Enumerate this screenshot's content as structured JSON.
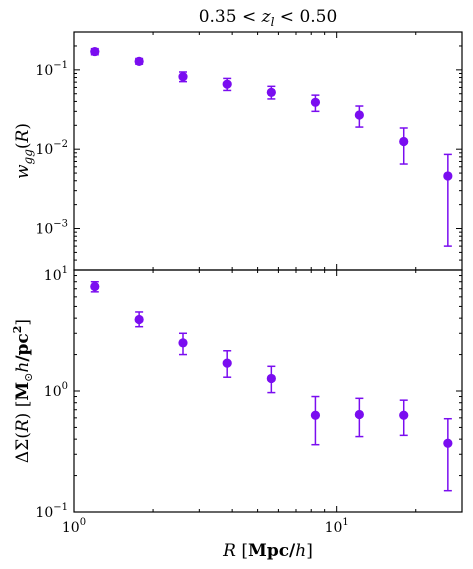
{
  "chart_data": [
    {
      "type": "scatter",
      "title": "0.35 < z_l < 0.50",
      "ylabel": "w_gg(R)",
      "xscale": "log",
      "yscale": "log",
      "xlim": [
        1,
        30
      ],
      "ylim": [
        0.0003,
        0.3
      ],
      "xticks": [
        {
          "value": 1,
          "label": "10^0"
        },
        {
          "value": 10,
          "label": "10^1"
        }
      ],
      "yticks": [
        {
          "value": 0.001,
          "label": "10^-3"
        },
        {
          "value": 0.01,
          "label": "10^-2"
        },
        {
          "value": 0.1,
          "label": "10^-1"
        }
      ],
      "series": [
        {
          "color": "#7a0df0",
          "points": [
            {
              "x": 1.2,
              "y": 0.17,
              "ylo": 0.155,
              "yhi": 0.185
            },
            {
              "x": 1.77,
              "y": 0.128,
              "ylo": 0.118,
              "yhi": 0.139
            },
            {
              "x": 2.6,
              "y": 0.082,
              "ylo": 0.071,
              "yhi": 0.094
            },
            {
              "x": 3.83,
              "y": 0.066,
              "ylo": 0.055,
              "yhi": 0.078
            },
            {
              "x": 5.64,
              "y": 0.052,
              "ylo": 0.043,
              "yhi": 0.062
            },
            {
              "x": 8.3,
              "y": 0.039,
              "ylo": 0.03,
              "yhi": 0.048
            },
            {
              "x": 12.2,
              "y": 0.027,
              "ylo": 0.019,
              "yhi": 0.035
            },
            {
              "x": 18.0,
              "y": 0.0125,
              "ylo": 0.0065,
              "yhi": 0.0185
            },
            {
              "x": 26.5,
              "y": 0.0046,
              "ylo": 0.0006,
              "yhi": 0.0086
            }
          ]
        }
      ]
    },
    {
      "type": "scatter",
      "xlabel": "R [Mpc/h]",
      "ylabel": "ΔΣ(R) [M⊙h/pc²]",
      "xscale": "log",
      "yscale": "log",
      "xlim": [
        1,
        30
      ],
      "ylim": [
        0.1,
        10
      ],
      "xticks": [
        {
          "value": 1,
          "label": "10^0"
        },
        {
          "value": 10,
          "label": "10^1"
        }
      ],
      "yticks": [
        {
          "value": 0.1,
          "label": "10^-1"
        },
        {
          "value": 1,
          "label": "10^0"
        },
        {
          "value": 10,
          "label": "10^1"
        }
      ],
      "series": [
        {
          "color": "#7a0df0",
          "points": [
            {
              "x": 1.2,
              "y": 7.3,
              "ylo": 6.6,
              "yhi": 8.0
            },
            {
              "x": 1.77,
              "y": 3.9,
              "ylo": 3.4,
              "yhi": 4.5
            },
            {
              "x": 2.6,
              "y": 2.5,
              "ylo": 2.0,
              "yhi": 3.0
            },
            {
              "x": 3.83,
              "y": 1.7,
              "ylo": 1.3,
              "yhi": 2.15
            },
            {
              "x": 5.64,
              "y": 1.27,
              "ylo": 0.97,
              "yhi": 1.6
            },
            {
              "x": 8.3,
              "y": 0.63,
              "ylo": 0.36,
              "yhi": 0.9
            },
            {
              "x": 12.2,
              "y": 0.64,
              "ylo": 0.42,
              "yhi": 0.87
            },
            {
              "x": 18.0,
              "y": 0.63,
              "ylo": 0.43,
              "yhi": 0.84
            },
            {
              "x": 26.5,
              "y": 0.37,
              "ylo": 0.15,
              "yhi": 0.59
            }
          ]
        }
      ]
    }
  ]
}
